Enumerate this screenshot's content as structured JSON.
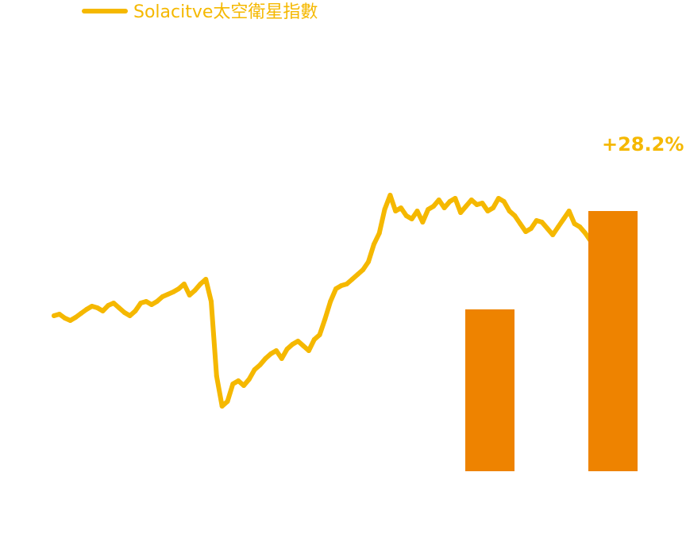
{
  "colors": {
    "line": "#F5B800",
    "bars": "#EE8300",
    "background": "#FFFFFF"
  },
  "chart_data": [
    {
      "type": "line",
      "legend": {
        "label": "Solacitve太空衛星指數",
        "placement": "top-left"
      },
      "end_label": "+28.2%",
      "grid": false,
      "series": [
        {
          "name": "Solacitve太空衛星指數",
          "values": [
            98.0,
            99.0,
            96.5,
            95.0,
            97.0,
            99.5,
            102.0,
            104.0,
            103.0,
            101.0,
            104.5,
            106.0,
            103.0,
            100.0,
            98.0,
            101.0,
            106.0,
            107.0,
            105.0,
            107.0,
            110.0,
            111.5,
            113.0,
            115.0,
            118.0,
            111.0,
            114.0,
            118.0,
            121.0,
            107.0,
            60.0,
            41.0,
            44.0,
            55.0,
            57.0,
            54.0,
            58.0,
            64.0,
            67.0,
            71.0,
            74.0,
            76.0,
            71.0,
            77.0,
            80.0,
            82.0,
            79.0,
            76.0,
            83.0,
            86.0,
            96.0,
            107.0,
            115.0,
            117.0,
            118.0,
            121.0,
            124.0,
            127.0,
            132.0,
            143.0,
            150.0,
            165.0,
            174.0,
            164.0,
            166.0,
            161.0,
            159.0,
            164.0,
            157.0,
            165.0,
            167.0,
            171.0,
            166.0,
            170.0,
            172.0,
            163.0,
            167.0,
            171.0,
            168.0,
            169.0,
            164.0,
            166.0,
            172.0,
            170.0,
            164.0,
            161.0,
            156.0,
            151.0,
            153.0,
            158.0,
            157.0,
            153.0,
            149.0,
            154.0,
            159.0,
            164.0,
            156.0,
            154.0,
            150.0,
            145.0
          ]
        }
      ]
    },
    {
      "type": "bar",
      "categories": [
        "",
        ""
      ],
      "values": [
        102,
        164
      ],
      "grid": false
    }
  ]
}
